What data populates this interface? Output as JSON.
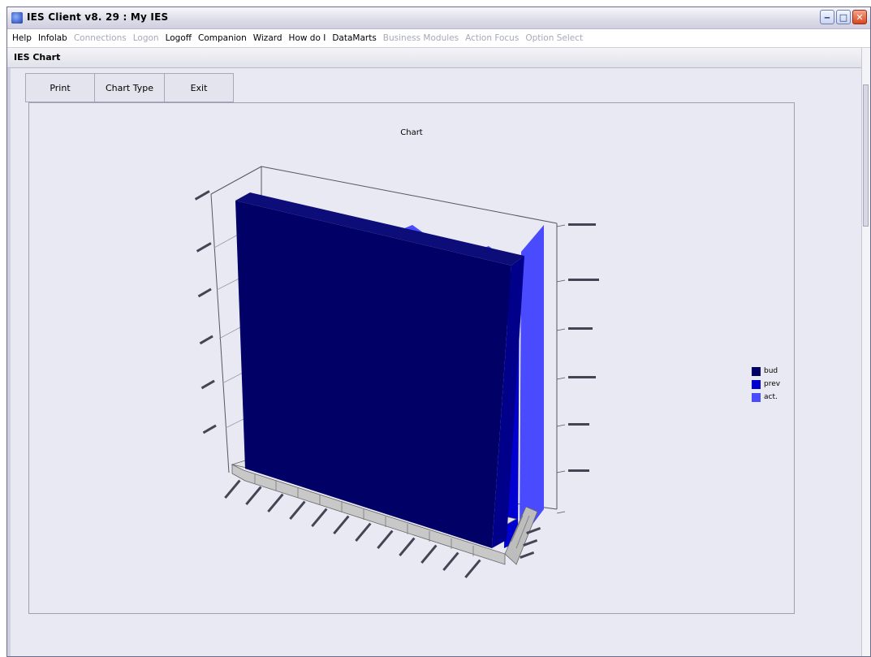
{
  "window": {
    "title": "IES Client v8. 29 : My IES"
  },
  "menu": {
    "items": [
      {
        "label": "Help",
        "enabled": true
      },
      {
        "label": "Infolab",
        "enabled": true
      },
      {
        "label": "Connections",
        "enabled": false
      },
      {
        "label": "Logon",
        "enabled": false
      },
      {
        "label": "Logoff",
        "enabled": true
      },
      {
        "label": "Companion",
        "enabled": true
      },
      {
        "label": "Wizard",
        "enabled": true
      },
      {
        "label": "How do I",
        "enabled": true
      },
      {
        "label": "DataMarts",
        "enabled": true
      },
      {
        "label": "Business Modules",
        "enabled": false
      },
      {
        "label": "Action Focus",
        "enabled": false
      },
      {
        "label": "Option Select",
        "enabled": false
      }
    ]
  },
  "subwindow": {
    "title": "IES Chart"
  },
  "toolbar": {
    "print_label": "Print",
    "chart_type_label": "Chart Type",
    "exit_label": "Exit"
  },
  "chart_data": {
    "type": "bar",
    "title": "Chart",
    "legend_position": "right",
    "series": [
      {
        "name": "bud",
        "color": "#000066"
      },
      {
        "name": "prev",
        "color": "#0000d0"
      },
      {
        "name": "act.",
        "color": "#4a4aff"
      }
    ]
  },
  "colors": {
    "window_bg": "#e9e9f3",
    "close_button": "#d9481f"
  }
}
